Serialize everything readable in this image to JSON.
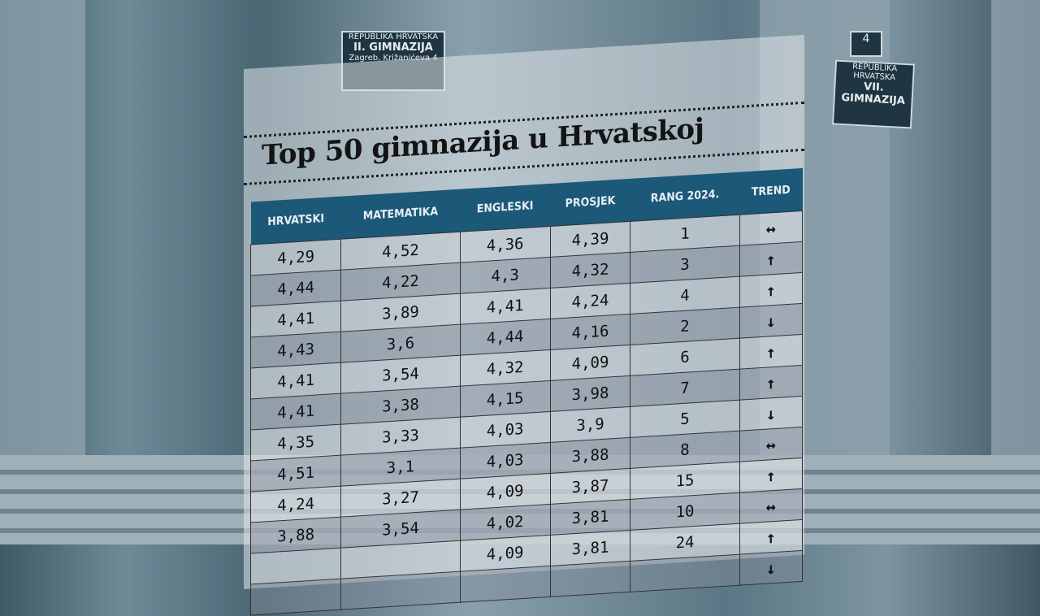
{
  "signs": {
    "left": {
      "top": "REPUBLIKA HRVATSKA",
      "name": "II. GIMNAZIJA",
      "address": "Zagreb, Križanićeva 4"
    },
    "right": {
      "top": "REPUBLIKA HRVATSKA",
      "name": "VII. GIMNAZIJA"
    },
    "house_number": "4"
  },
  "title": "Top 50 gimnazija u Hrvatskoj",
  "chart_data": {
    "type": "table",
    "title": "Top 50 gimnazija u Hrvatskoj",
    "columns": [
      "HRVATSKI",
      "MATEMATIKA",
      "ENGLESKI",
      "PROSJEK",
      "RANG 2024.",
      "TREND"
    ],
    "rows": [
      [
        "4,29",
        "4,52",
        "4,36",
        "4,39",
        "1",
        "↔"
      ],
      [
        "4,44",
        "4,22",
        "4,3",
        "4,32",
        "3",
        "↑"
      ],
      [
        "4,41",
        "3,89",
        "4,41",
        "4,24",
        "4",
        "↑"
      ],
      [
        "4,43",
        "3,6",
        "4,44",
        "4,16",
        "2",
        "↓"
      ],
      [
        "4,41",
        "3,54",
        "4,32",
        "4,09",
        "6",
        "↑"
      ],
      [
        "4,41",
        "3,38",
        "4,15",
        "3,98",
        "7",
        "↑"
      ],
      [
        "4,35",
        "3,33",
        "4,03",
        "3,9",
        "5",
        "↓"
      ],
      [
        "4,51",
        "3,1",
        "4,03",
        "3,88",
        "8",
        "↔"
      ],
      [
        "4,24",
        "3,27",
        "4,09",
        "3,87",
        "15",
        "↑"
      ],
      [
        "3,88",
        "3,54",
        "4,02",
        "3,81",
        "10",
        "↔"
      ],
      [
        "",
        "",
        "4,09",
        "3,81",
        "24",
        "↑"
      ],
      [
        "",
        "",
        "",
        "",
        "",
        "↓"
      ]
    ]
  }
}
